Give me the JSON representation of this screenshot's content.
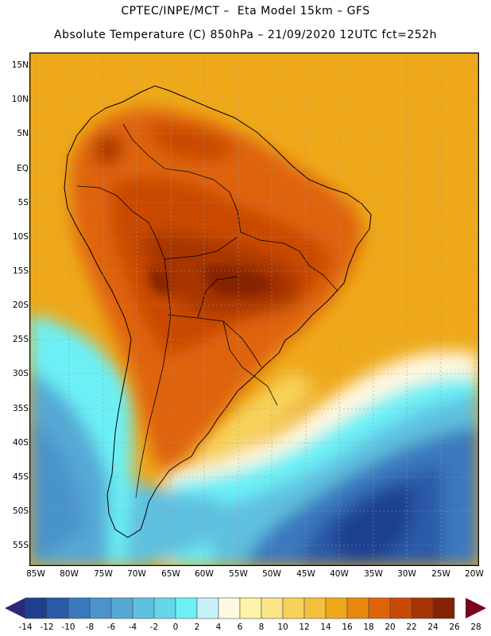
{
  "header": {
    "line1": "CPTEC/INPE/MCT –  Eta Model 15km – GFS",
    "line2": "Absolute Temperature (C) 850hPa – 21/09/2020 12UTC fct=252h"
  },
  "axes": {
    "lat_labels": [
      "15N",
      "10N",
      "5N",
      "EQ",
      "5S",
      "10S",
      "15S",
      "20S",
      "25S",
      "30S",
      "35S",
      "40S",
      "45S",
      "50S",
      "55S"
    ],
    "lon_labels": [
      "85W",
      "80W",
      "75W",
      "70W",
      "65W",
      "60W",
      "55W",
      "50W",
      "45W",
      "40W",
      "35W",
      "30W",
      "25W",
      "20W"
    ]
  },
  "colorbar": {
    "labels": [
      "-14",
      "-12",
      "-10",
      "-8",
      "-6",
      "-4",
      "-2",
      "0",
      "2",
      "4",
      "6",
      "8",
      "10",
      "12",
      "14",
      "16",
      "18",
      "20",
      "22",
      "24",
      "26",
      "28"
    ],
    "colors": [
      "#1f3f8f",
      "#2a5aa8",
      "#3a78be",
      "#4a93cc",
      "#55a8d6",
      "#5fc0e0",
      "#66d6ea",
      "#6cf0f6",
      "#c8f2fb",
      "#fff8e0",
      "#fdf3a8",
      "#fbe488",
      "#f7d25a",
      "#f3c03c",
      "#efa91a",
      "#e9880e",
      "#df6408",
      "#c94a06",
      "#a73404",
      "#852204"
    ],
    "under_color": "#2a2a7a",
    "over_color": "#7a0022"
  },
  "map": {
    "region": "South America",
    "field": "850hPa absolute temperature"
  }
}
